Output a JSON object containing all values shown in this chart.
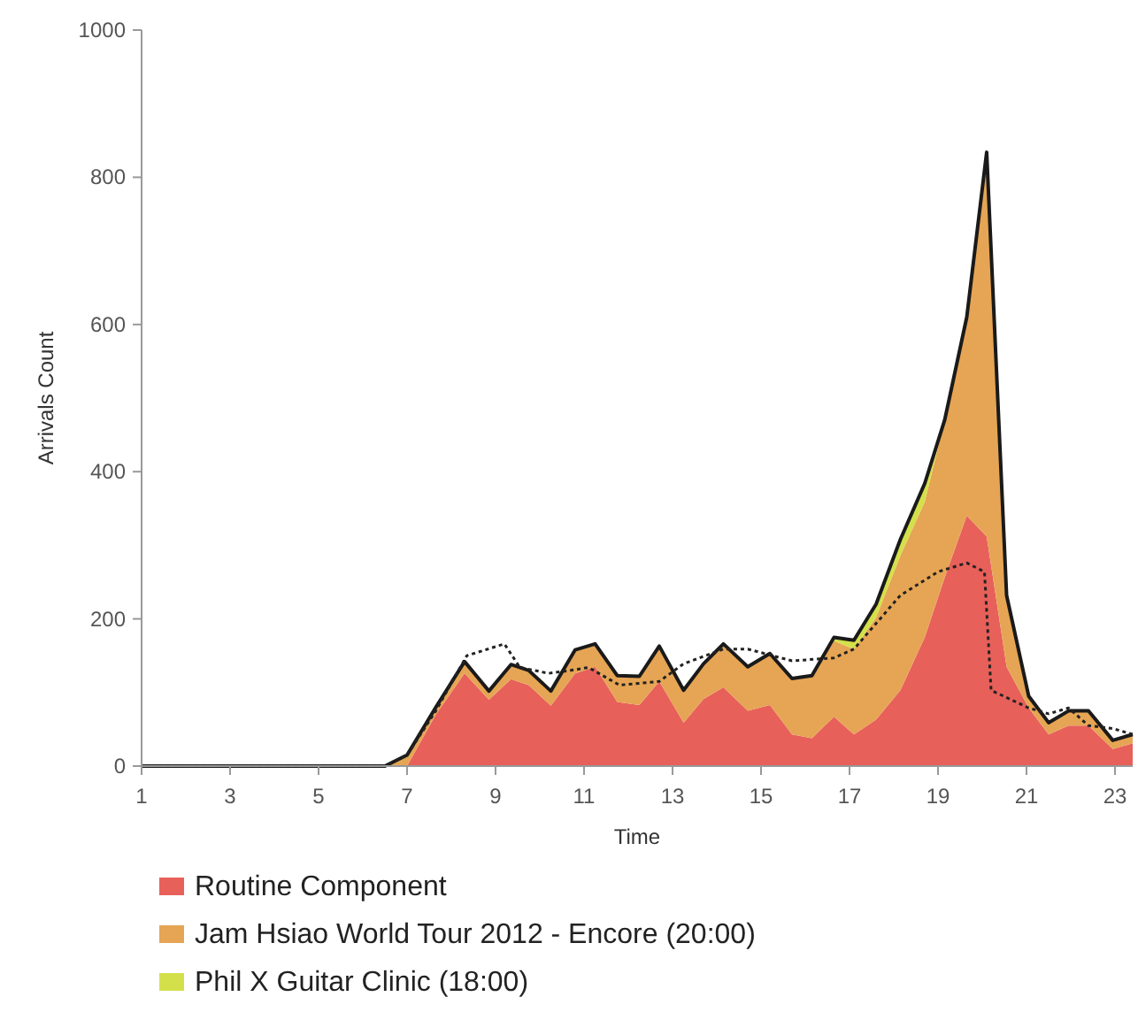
{
  "chart_data": {
    "type": "area",
    "stacked": true,
    "xlabel": "Time",
    "ylabel": "Arrivals Count",
    "xlim": [
      1,
      23.4
    ],
    "xticks": [
      1,
      3,
      5,
      7,
      9,
      11,
      13,
      15,
      17,
      19,
      21,
      23
    ],
    "ylim": [
      0,
      1000
    ],
    "yticks": [
      0,
      200,
      400,
      600,
      800,
      1000
    ],
    "grid": false,
    "legend": "bottom",
    "x": [
      1,
      6.5,
      7,
      7.65,
      8.3,
      8.85,
      9.35,
      9.75,
      10.25,
      10.8,
      11.25,
      11.75,
      12.25,
      12.7,
      13.25,
      13.7,
      14.15,
      14.7,
      15.2,
      15.7,
      16.15,
      16.65,
      17.1,
      17.6,
      18.15,
      18.7,
      19.15,
      19.65,
      20.1,
      20.55,
      21.05,
      21.5,
      21.95,
      22.4,
      22.95,
      23.4
    ],
    "series": [
      {
        "name": "Routine Component",
        "color": "#e8605a",
        "values": [
          0,
          0,
          0,
          70,
          126,
          90,
          118,
          110,
          82,
          126,
          135,
          87,
          83,
          115,
          59,
          91,
          107,
          75,
          83,
          43,
          38,
          67,
          43,
          63,
          103,
          175,
          256,
          340,
          312,
          135,
          79,
          43,
          55,
          55,
          23,
          31
        ]
      },
      {
        "name": "Jam Hsiao World Tour 2012 - Encore (20:00)",
        "color": "#e6a554",
        "values": [
          0,
          0,
          15,
          10,
          16,
          12,
          20,
          20,
          20,
          32,
          31,
          36,
          39,
          48,
          44,
          48,
          59,
          60,
          70,
          76,
          85,
          103,
          116,
          139,
          183,
          184,
          214,
          270,
          522,
          97,
          16,
          16,
          20,
          20,
          12,
          12
        ]
      },
      {
        "name": "Phil X Guitar Clinic (18:00)",
        "color": "#d4e04a",
        "values": [
          null,
          null,
          null,
          null,
          null,
          null,
          null,
          null,
          null,
          null,
          null,
          null,
          null,
          null,
          null,
          null,
          null,
          null,
          null,
          null,
          0,
          5,
          12,
          18,
          22,
          25,
          0,
          null,
          null,
          null,
          null,
          null,
          null,
          null,
          null,
          null
        ]
      },
      {
        "type": "line",
        "color": "#222222",
        "line_style": "dotted",
        "x": [
          1,
          6.5,
          7,
          7.65,
          8.35,
          9.2,
          9.55,
          10.2,
          10.7,
          11.1,
          11.8,
          12.7,
          13.25,
          14.15,
          14.7,
          15.7,
          16.65,
          17.1,
          18.15,
          19.0,
          19.65,
          20.05,
          20.2,
          21.05,
          21.5,
          21.95,
          22.4,
          22.95,
          23.4
        ],
        "values": [
          0,
          0,
          15,
          75,
          150,
          166,
          134,
          126,
          130,
          134,
          110,
          115,
          139,
          159,
          159,
          143,
          147,
          159,
          232,
          264,
          276,
          264,
          103,
          79,
          71,
          79,
          55,
          51,
          43
        ]
      }
    ]
  }
}
